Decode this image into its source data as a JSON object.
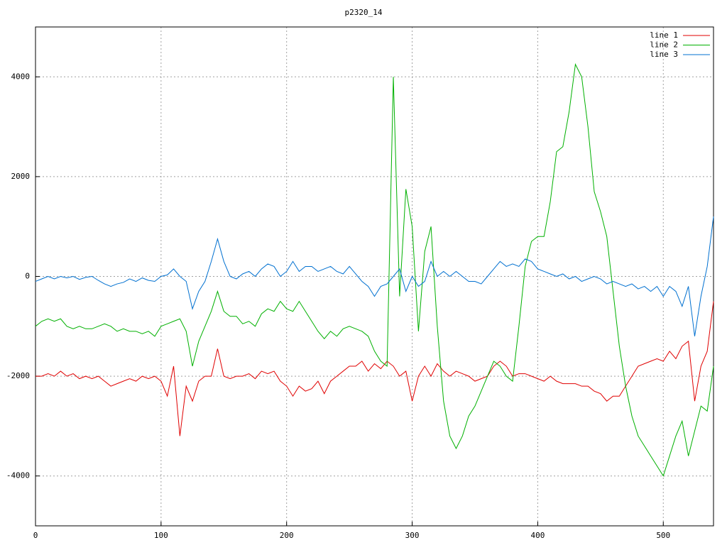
{
  "chart_data": {
    "type": "line",
    "title": "p2320_14",
    "x": [
      0,
      5,
      10,
      15,
      20,
      25,
      30,
      35,
      40,
      45,
      50,
      55,
      60,
      65,
      70,
      75,
      80,
      85,
      90,
      95,
      100,
      105,
      110,
      115,
      120,
      125,
      130,
      135,
      140,
      145,
      150,
      155,
      160,
      165,
      170,
      175,
      180,
      185,
      190,
      195,
      200,
      205,
      210,
      215,
      220,
      225,
      230,
      235,
      240,
      245,
      250,
      255,
      260,
      265,
      270,
      275,
      280,
      285,
      290,
      295,
      300,
      305,
      310,
      315,
      320,
      325,
      330,
      335,
      340,
      345,
      350,
      355,
      360,
      365,
      370,
      375,
      380,
      385,
      390,
      395,
      400,
      405,
      410,
      415,
      420,
      425,
      430,
      435,
      440,
      445,
      450,
      455,
      460,
      465,
      470,
      475,
      480,
      485,
      490,
      495,
      500,
      505,
      510,
      515,
      520,
      525,
      530,
      535,
      540
    ],
    "series": [
      {
        "name": "line 1",
        "color": "#e00000",
        "values": [
          -2000,
          -2000,
          -1950,
          -2000,
          -1900,
          -2000,
          -1950,
          -2050,
          -2000,
          -2050,
          -2000,
          -2100,
          -2200,
          -2150,
          -2100,
          -2050,
          -2100,
          -2000,
          -2050,
          -2000,
          -2100,
          -2400,
          -1800,
          -3200,
          -2200,
          -2500,
          -2100,
          -2000,
          -2000,
          -1450,
          -2000,
          -2050,
          -2000,
          -2000,
          -1950,
          -2050,
          -1900,
          -1950,
          -1900,
          -2100,
          -2200,
          -2400,
          -2200,
          -2300,
          -2250,
          -2100,
          -2350,
          -2100,
          -2000,
          -1900,
          -1800,
          -1800,
          -1700,
          -1900,
          -1750,
          -1850,
          -1700,
          -1800,
          -2000,
          -1900,
          -2500,
          -2000,
          -1800,
          -2000,
          -1750,
          -1900,
          -2000,
          -1900,
          -1950,
          -2000,
          -2100,
          -2050,
          -2000,
          -1800,
          -1700,
          -1800,
          -2000,
          -1950,
          -1950,
          -2000,
          -2050,
          -2100,
          -2000,
          -2100,
          -2150,
          -2150,
          -2150,
          -2200,
          -2200,
          -2300,
          -2350,
          -2500,
          -2400,
          -2400,
          -2200,
          -2000,
          -1800,
          -1750,
          -1700,
          -1650,
          -1700,
          -1500,
          -1650,
          -1400,
          -1300,
          -2500,
          -1800,
          -1500,
          -500
        ]
      },
      {
        "name": "line 2",
        "color": "#00b000",
        "values": [
          -1000,
          -900,
          -850,
          -900,
          -850,
          -1000,
          -1050,
          -1000,
          -1050,
          -1050,
          -1000,
          -950,
          -1000,
          -1100,
          -1050,
          -1100,
          -1100,
          -1150,
          -1100,
          -1200,
          -1000,
          -950,
          -900,
          -850,
          -1100,
          -1800,
          -1300,
          -1000,
          -700,
          -300,
          -700,
          -800,
          -800,
          -950,
          -900,
          -1000,
          -750,
          -650,
          -700,
          -500,
          -650,
          -700,
          -500,
          -700,
          -900,
          -1100,
          -1250,
          -1100,
          -1200,
          -1050,
          -1000,
          -1050,
          -1100,
          -1200,
          -1500,
          -1700,
          -1800,
          4000,
          -400,
          1750,
          1000,
          -1100,
          500,
          1000,
          -1000,
          -2500,
          -3200,
          -3450,
          -3200,
          -2800,
          -2600,
          -2300,
          -2000,
          -1700,
          -1800,
          -2000,
          -2100,
          -1000,
          200,
          700,
          800,
          800,
          1500,
          2500,
          2600,
          3300,
          4250,
          4000,
          3000,
          1700,
          1300,
          800,
          -300,
          -1400,
          -2200,
          -2800,
          -3200,
          -3400,
          -3600,
          -3800,
          -4000,
          -3600,
          -3200,
          -2900,
          -3600,
          -3100,
          -2600,
          -2700,
          -1800
        ]
      },
      {
        "name": "line 3",
        "color": "#0070d0",
        "values": [
          -100,
          -50,
          0,
          -50,
          0,
          -30,
          0,
          -60,
          -20,
          0,
          -80,
          -150,
          -200,
          -150,
          -120,
          -50,
          -100,
          -30,
          -80,
          -100,
          0,
          30,
          150,
          0,
          -100,
          -650,
          -300,
          -100,
          300,
          750,
          300,
          0,
          -50,
          50,
          100,
          0,
          150,
          250,
          200,
          0,
          100,
          300,
          100,
          200,
          200,
          100,
          150,
          200,
          100,
          50,
          200,
          50,
          -100,
          -200,
          -400,
          -200,
          -150,
          0,
          150,
          -300,
          0,
          -200,
          -100,
          300,
          0,
          100,
          0,
          100,
          0,
          -100,
          -100,
          -150,
          0,
          150,
          300,
          200,
          250,
          200,
          350,
          300,
          150,
          100,
          50,
          0,
          50,
          -50,
          0,
          -100,
          -50,
          0,
          -50,
          -150,
          -100,
          -150,
          -200,
          -150,
          -250,
          -200,
          -300,
          -200,
          -400,
          -200,
          -300,
          -600,
          -200,
          -1200,
          -400,
          200,
          1200
        ]
      }
    ],
    "xlim": [
      0,
      540
    ],
    "xticks": [
      0,
      100,
      200,
      300,
      400,
      500
    ],
    "ylim": [
      -5000,
      5000
    ],
    "yticks": [
      -4000,
      -2000,
      0,
      2000,
      4000
    ],
    "grid": true,
    "legend": "top-right"
  }
}
